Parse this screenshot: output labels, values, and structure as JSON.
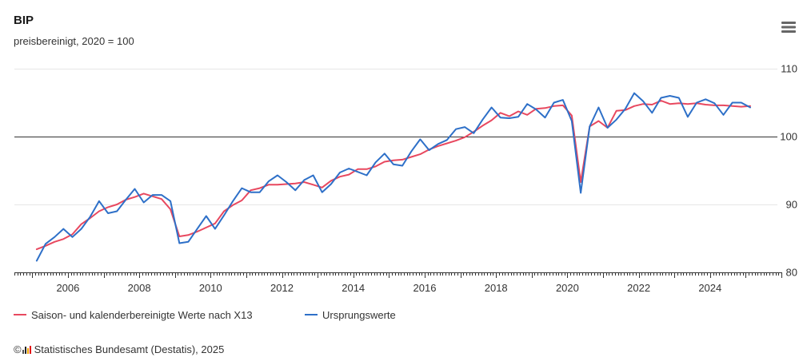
{
  "header": {
    "menu_icon": "hamburger-menu-icon"
  },
  "chart_data": {
    "type": "line",
    "title": "BIP",
    "subtitle": "preisbereinigt, 2020 = 100",
    "xlim": [
      "2004-07-01",
      "2026-01-01"
    ],
    "ylim": [
      80,
      110
    ],
    "y_ticks": [
      80,
      90,
      100,
      110
    ],
    "y_axis_position": "right",
    "x_ticks": [
      "2006",
      "2008",
      "2010",
      "2012",
      "2014",
      "2016",
      "2018",
      "2020",
      "2022",
      "2024"
    ],
    "reference_line": 100,
    "grid": true,
    "legend_position": "bottom-left",
    "x": [
      "2005-Q1",
      "2005-Q2",
      "2005-Q3",
      "2005-Q4",
      "2006-Q1",
      "2006-Q2",
      "2006-Q3",
      "2006-Q4",
      "2007-Q1",
      "2007-Q2",
      "2007-Q3",
      "2007-Q4",
      "2008-Q1",
      "2008-Q2",
      "2008-Q3",
      "2008-Q4",
      "2009-Q1",
      "2009-Q2",
      "2009-Q3",
      "2009-Q4",
      "2010-Q1",
      "2010-Q2",
      "2010-Q3",
      "2010-Q4",
      "2011-Q1",
      "2011-Q2",
      "2011-Q3",
      "2011-Q4",
      "2012-Q1",
      "2012-Q2",
      "2012-Q3",
      "2012-Q4",
      "2013-Q1",
      "2013-Q2",
      "2013-Q3",
      "2013-Q4",
      "2014-Q1",
      "2014-Q2",
      "2014-Q3",
      "2014-Q4",
      "2015-Q1",
      "2015-Q2",
      "2015-Q3",
      "2015-Q4",
      "2016-Q1",
      "2016-Q2",
      "2016-Q3",
      "2016-Q4",
      "2017-Q1",
      "2017-Q2",
      "2017-Q3",
      "2017-Q4",
      "2018-Q1",
      "2018-Q2",
      "2018-Q3",
      "2018-Q4",
      "2019-Q1",
      "2019-Q2",
      "2019-Q3",
      "2019-Q4",
      "2020-Q1",
      "2020-Q2",
      "2020-Q3",
      "2020-Q4",
      "2021-Q1",
      "2021-Q2",
      "2021-Q3",
      "2021-Q4",
      "2022-Q1",
      "2022-Q2",
      "2022-Q3",
      "2022-Q4",
      "2023-Q1",
      "2023-Q2",
      "2023-Q3",
      "2023-Q4",
      "2024-Q1",
      "2024-Q2",
      "2024-Q3",
      "2024-Q4",
      "2025-Q1"
    ],
    "series": [
      {
        "name": "Saison- und kalenderbereinigte Werte nach X13",
        "color": "#e8485f",
        "values": [
          83.4,
          83.9,
          84.5,
          84.9,
          85.6,
          87.1,
          88.0,
          89.0,
          89.6,
          90.0,
          90.7,
          91.1,
          91.6,
          91.2,
          90.8,
          89.3,
          85.3,
          85.5,
          86.0,
          86.6,
          87.2,
          89.0,
          89.9,
          90.6,
          92.1,
          92.4,
          92.9,
          92.9,
          93.0,
          93.1,
          93.3,
          92.9,
          92.5,
          93.5,
          94.1,
          94.4,
          95.2,
          95.2,
          95.6,
          96.3,
          96.5,
          96.6,
          97.0,
          97.4,
          98.1,
          98.6,
          99.0,
          99.4,
          99.9,
          100.7,
          101.6,
          102.4,
          103.5,
          103.0,
          103.7,
          103.2,
          104.1,
          104.2,
          104.5,
          104.6,
          103.1,
          93.3,
          101.5,
          102.3,
          101.3,
          103.8,
          103.9,
          104.5,
          104.8,
          104.7,
          105.3,
          104.8,
          104.9,
          104.8,
          104.9,
          104.7,
          104.6,
          104.6,
          104.5,
          104.4,
          104.5
        ]
      },
      {
        "name": "Ursprungswerte",
        "color": "#2e70c8",
        "values": [
          81.7,
          84.2,
          85.2,
          86.4,
          85.2,
          86.4,
          88.2,
          90.5,
          88.7,
          89.0,
          90.7,
          92.3,
          90.3,
          91.4,
          91.4,
          90.5,
          84.3,
          84.5,
          86.4,
          88.3,
          86.4,
          88.4,
          90.5,
          92.4,
          91.8,
          91.8,
          93.4,
          94.3,
          93.3,
          92.1,
          93.6,
          94.3,
          91.8,
          93.0,
          94.7,
          95.3,
          94.8,
          94.3,
          96.2,
          97.5,
          95.9,
          95.7,
          97.8,
          99.6,
          98.0,
          98.9,
          99.5,
          101.1,
          101.4,
          100.5,
          102.5,
          104.3,
          102.8,
          102.7,
          102.9,
          104.8,
          104.0,
          102.8,
          105.0,
          105.4,
          102.3,
          91.7,
          101.5,
          104.3,
          101.3,
          102.5,
          104.1,
          106.4,
          105.2,
          103.5,
          105.7,
          106.0,
          105.7,
          102.9,
          105.0,
          105.5,
          104.9,
          103.2,
          105.0,
          105.0,
          104.3
        ]
      }
    ]
  },
  "footer": {
    "copyright": "©",
    "logo_icon": "destatis-logo",
    "source": "Statistisches Bundesamt (Destatis), 2025"
  }
}
